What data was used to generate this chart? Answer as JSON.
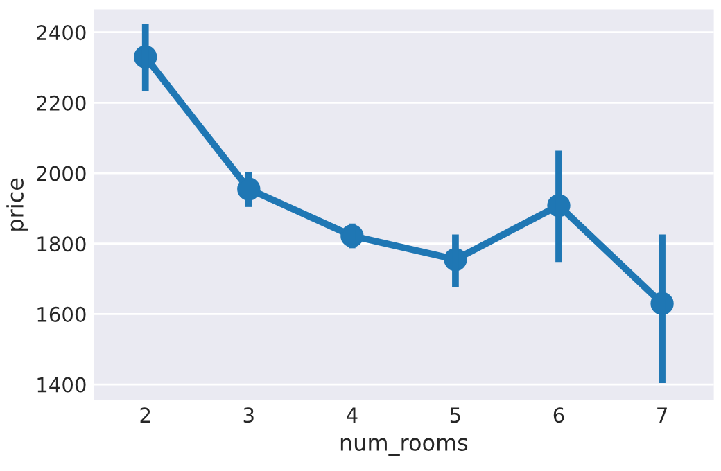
{
  "chart_data": {
    "type": "line",
    "xlabel": "num_rooms",
    "ylabel": "price",
    "categories": [
      "2",
      "3",
      "4",
      "5",
      "6",
      "7"
    ],
    "series": [
      {
        "color": "#1f77b4",
        "values": [
          2330,
          1955,
          1822,
          1755,
          1908,
          1630
        ],
        "errors": [
          [
            2232,
            2424
          ],
          [
            1904,
            2002
          ],
          [
            1787,
            1857
          ],
          [
            1677,
            1826
          ],
          [
            1748,
            2064
          ],
          [
            1404,
            1826
          ]
        ]
      }
    ],
    "ylim": [
      1355,
      2465
    ],
    "yticks": [
      1400,
      1600,
      1800,
      2000,
      2200,
      2400
    ],
    "grid": "y",
    "marker": "circle",
    "line_style": "solid"
  }
}
